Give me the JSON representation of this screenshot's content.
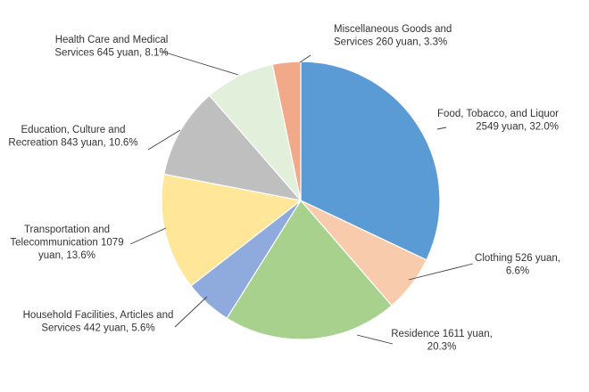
{
  "chart_data": {
    "type": "pie",
    "title": "",
    "start_angle": "12 o'clock",
    "direction": "clockwise",
    "slices": [
      {
        "name": "Food, Tobacco, and Liquor",
        "value": 2549,
        "percent": 32.0,
        "color": "#5B9BD5",
        "label_lines": [
          "Food, Tobacco, and Liquor",
          "2549 yuan, 32.0%"
        ]
      },
      {
        "name": "Clothing",
        "value": 526,
        "percent": 6.6,
        "color": "#F8CBAD",
        "label_lines": [
          "Clothing 526 yuan,",
          "6.6%"
        ]
      },
      {
        "name": "Residence",
        "value": 1611,
        "percent": 20.3,
        "color": "#A9D18E",
        "label_lines": [
          "Residence 1611 yuan,",
          "20.3%"
        ]
      },
      {
        "name": "Household Facilities, Articles and Services",
        "value": 442,
        "percent": 5.6,
        "color": "#8FAADC",
        "label_lines": [
          "Household Facilities, Articles and",
          "Services 442 yuan, 5.6%"
        ]
      },
      {
        "name": "Transportation and Telecommunication",
        "value": 1079,
        "percent": 13.6,
        "color": "#FFE699",
        "label_lines": [
          "Transportation and",
          "Telecommunication 1079",
          "yuan, 13.6%"
        ]
      },
      {
        "name": "Education, Culture and Recreation",
        "value": 843,
        "percent": 10.6,
        "color": "#BFBFBF",
        "label_lines": [
          "Education, Culture and",
          "Recreation 843 yuan, 10.6%"
        ]
      },
      {
        "name": "Health Care and Medical Services",
        "value": 645,
        "percent": 8.1,
        "color": "#E2EFDA",
        "label_lines": [
          "Health Care and Medical",
          "Services 645 yuan, 8.1%"
        ]
      },
      {
        "name": "Miscellaneous Goods and Services",
        "value": 260,
        "percent": 3.3,
        "color": "#F1A98A",
        "label_lines": [
          "Miscellaneous Goods and",
          "Services 260 yuan, 3.3%"
        ]
      }
    ]
  }
}
